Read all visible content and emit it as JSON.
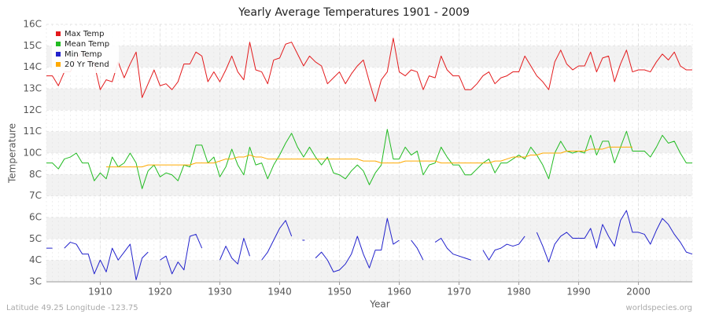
{
  "chart_data": {
    "type": "line",
    "title": "Yearly Average Temperatures 1901 - 2009",
    "x_label": "Year",
    "y_label": "Temperature",
    "annotations": [
      "Latitude 49.25 Longitude -123.75",
      "worldspecies.org"
    ],
    "legend": "upper left",
    "grid": true,
    "xlim": [
      1901,
      2009
    ],
    "xticks": [
      1910,
      1920,
      1930,
      1940,
      1950,
      1960,
      1970,
      1980,
      1990,
      2000
    ],
    "ylim": [
      3,
      16
    ],
    "yticks": [
      {
        "value": 16,
        "label": "16C"
      },
      {
        "value": 14.9167,
        "label": "15C"
      },
      {
        "value": 13.8333,
        "label": "14C"
      },
      {
        "value": 12.75,
        "label": "13C"
      },
      {
        "value": 11.6667,
        "label": "12C"
      },
      {
        "value": 10.5833,
        "label": "11C"
      },
      {
        "value": 9.5,
        "label": "10C"
      },
      {
        "value": 8.4167,
        "label": "8C"
      },
      {
        "value": 7.3333,
        "label": "7C"
      },
      {
        "value": 6.25,
        "label": "6C"
      },
      {
        "value": 5.1667,
        "label": "5C"
      },
      {
        "value": 4.0833,
        "label": "4C"
      },
      {
        "value": 3,
        "label": "3C"
      }
    ],
    "x": [
      1901,
      1902,
      1903,
      1904,
      1905,
      1906,
      1907,
      1908,
      1909,
      1910,
      1911,
      1912,
      1913,
      1914,
      1915,
      1916,
      1917,
      1918,
      1919,
      1920,
      1921,
      1922,
      1923,
      1924,
      1925,
      1926,
      1927,
      1928,
      1929,
      1930,
      1931,
      1932,
      1933,
      1934,
      1935,
      1936,
      1937,
      1938,
      1939,
      1940,
      1941,
      1942,
      1943,
      1944,
      1945,
      1946,
      1947,
      1948,
      1949,
      1950,
      1951,
      1952,
      1953,
      1954,
      1955,
      1956,
      1957,
      1958,
      1959,
      1960,
      1961,
      1962,
      1963,
      1964,
      1965,
      1966,
      1967,
      1968,
      1969,
      1970,
      1971,
      1972,
      1973,
      1974,
      1975,
      1976,
      1977,
      1978,
      1979,
      1980,
      1981,
      1982,
      1983,
      1984,
      1985,
      1986,
      1987,
      1988,
      1989,
      1990,
      1991,
      1992,
      1993,
      1994,
      1995,
      1996,
      1997,
      1998,
      1999,
      2000,
      2001,
      2002,
      2003,
      2004,
      2005,
      2006,
      2007,
      2008,
      2009
    ],
    "series": [
      {
        "name": "Max Temp",
        "color": "#e31a1c",
        "values": [
          13.4,
          13.4,
          12.9,
          13.6,
          13.6,
          14.3,
          14.6,
          14.2,
          14.0,
          12.7,
          13.2,
          13.1,
          14.1,
          13.3,
          14.0,
          14.6,
          12.3,
          13.0,
          13.7,
          12.9,
          13.0,
          12.7,
          13.1,
          14.0,
          14.0,
          14.6,
          14.4,
          13.1,
          13.6,
          13.1,
          13.7,
          14.4,
          13.6,
          13.2,
          15.1,
          13.7,
          13.6,
          13.0,
          14.2,
          14.3,
          15.0,
          15.1,
          14.5,
          13.9,
          14.4,
          14.1,
          13.9,
          13.0,
          13.3,
          13.6,
          13.0,
          13.5,
          13.9,
          14.2,
          13.1,
          12.1,
          13.2,
          13.6,
          15.3,
          13.6,
          13.4,
          13.7,
          13.6,
          12.7,
          13.4,
          13.3,
          14.4,
          13.7,
          13.4,
          13.4,
          12.7,
          12.7,
          13.0,
          13.4,
          13.6,
          13.0,
          13.3,
          13.4,
          13.6,
          13.6,
          14.4,
          13.9,
          13.4,
          13.1,
          12.7,
          14.1,
          14.7,
          14.0,
          13.7,
          13.9,
          13.9,
          14.6,
          13.6,
          14.3,
          14.4,
          13.1,
          14.0,
          14.7,
          13.6,
          13.7,
          13.7,
          13.6,
          14.1,
          14.5,
          14.2,
          14.6,
          13.9,
          13.7,
          13.7
        ]
      },
      {
        "name": "Mean Temp",
        "color": "#22bb22",
        "values": [
          9.0,
          9.0,
          8.7,
          9.2,
          9.3,
          9.5,
          9.0,
          9.0,
          8.1,
          8.5,
          8.2,
          9.3,
          8.8,
          9.0,
          9.5,
          9.0,
          7.7,
          8.6,
          8.9,
          8.3,
          8.5,
          8.4,
          8.1,
          8.9,
          8.8,
          9.9,
          9.9,
          9.0,
          9.3,
          8.3,
          8.8,
          9.7,
          8.9,
          8.4,
          9.8,
          8.9,
          9.0,
          8.2,
          8.9,
          9.4,
          10.0,
          10.5,
          9.8,
          9.3,
          9.8,
          9.3,
          8.9,
          9.3,
          8.5,
          8.4,
          8.2,
          8.6,
          8.9,
          8.6,
          7.9,
          8.5,
          8.9,
          10.7,
          9.2,
          9.2,
          9.8,
          9.4,
          9.6,
          8.4,
          8.9,
          9.0,
          9.8,
          9.3,
          8.9,
          8.9,
          8.4,
          8.4,
          8.7,
          9.0,
          9.2,
          8.5,
          9.0,
          9.0,
          9.2,
          9.4,
          9.2,
          9.8,
          9.4,
          8.9,
          8.2,
          9.5,
          10.1,
          9.6,
          9.5,
          9.6,
          9.5,
          10.4,
          9.4,
          10.1,
          10.1,
          9.0,
          9.8,
          10.6,
          9.6,
          9.6,
          9.6,
          9.3,
          9.8,
          10.4,
          10.0,
          10.1,
          9.5,
          9.0,
          9.0
        ]
      },
      {
        "name": "Min Temp",
        "color": "#2222cc",
        "values": [
          4.7,
          4.7,
          null,
          4.7,
          5.0,
          4.9,
          4.4,
          4.4,
          3.4,
          4.1,
          3.5,
          4.7,
          4.1,
          4.5,
          4.9,
          3.1,
          4.2,
          4.5,
          null,
          4.1,
          4.3,
          3.4,
          4.0,
          3.6,
          5.3,
          5.4,
          4.7,
          null,
          null,
          4.1,
          4.8,
          4.2,
          3.9,
          5.2,
          4.3,
          null,
          4.1,
          4.5,
          5.1,
          5.7,
          6.1,
          5.3,
          null,
          5.1,
          null,
          4.2,
          4.5,
          4.1,
          3.5,
          3.6,
          3.9,
          4.4,
          5.3,
          4.4,
          3.7,
          4.6,
          4.6,
          6.2,
          4.9,
          5.1,
          null,
          5.1,
          4.7,
          4.1,
          null,
          5.0,
          5.2,
          4.7,
          4.4,
          4.3,
          4.2,
          4.1,
          null,
          4.6,
          4.1,
          4.6,
          4.7,
          4.9,
          4.8,
          4.9,
          5.3,
          null,
          5.5,
          4.8,
          4.0,
          4.9,
          5.3,
          5.5,
          5.2,
          5.2,
          5.2,
          5.7,
          4.7,
          5.9,
          5.3,
          4.8,
          6.1,
          6.6,
          5.5,
          5.5,
          5.4,
          4.9,
          5.6,
          6.2,
          5.9,
          5.4,
          5.0,
          4.5,
          4.4
        ]
      },
      {
        "name": "20 Yr Trend",
        "color": "#ffaa00",
        "values": [
          null,
          null,
          null,
          null,
          null,
          null,
          null,
          null,
          null,
          null,
          8.8,
          8.8,
          8.8,
          8.8,
          8.8,
          8.8,
          8.8,
          8.9,
          8.9,
          8.9,
          8.9,
          8.9,
          8.9,
          8.9,
          8.9,
          9.0,
          9.0,
          9.0,
          9.0,
          9.1,
          9.2,
          9.2,
          9.3,
          9.3,
          9.4,
          9.3,
          9.3,
          9.2,
          9.2,
          9.2,
          9.2,
          9.2,
          9.2,
          9.2,
          9.2,
          9.2,
          9.2,
          9.2,
          9.2,
          9.2,
          9.2,
          9.2,
          9.2,
          9.1,
          9.1,
          9.1,
          9.0,
          9.0,
          9.0,
          9.0,
          9.1,
          9.1,
          9.1,
          9.1,
          9.1,
          9.1,
          9.0,
          9.0,
          9.0,
          9.0,
          9.0,
          9.0,
          9.0,
          9.0,
          9.0,
          9.1,
          9.1,
          9.2,
          9.3,
          9.3,
          9.3,
          9.4,
          9.4,
          9.5,
          9.5,
          9.5,
          9.5,
          9.6,
          9.6,
          9.6,
          9.6,
          9.7,
          9.7,
          9.7,
          9.8,
          9.8,
          9.8,
          9.8,
          9.8,
          null,
          null,
          null,
          null,
          null,
          null,
          null,
          null,
          null,
          null
        ]
      }
    ]
  }
}
